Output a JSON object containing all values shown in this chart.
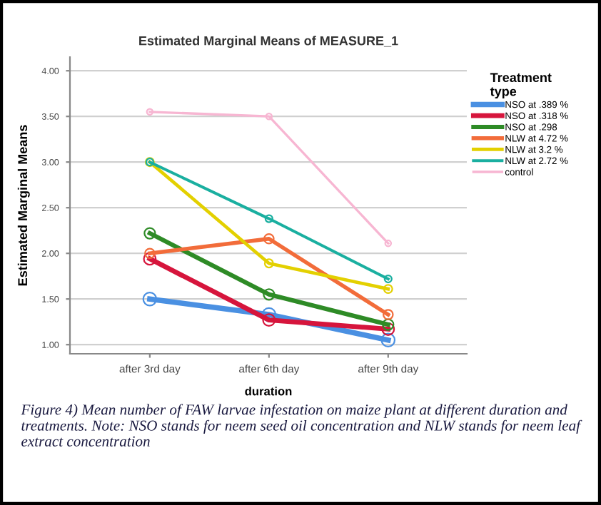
{
  "chart_data": {
    "type": "line",
    "title": "Estimated Marginal Means of MEASURE_1",
    "xlabel": "duration",
    "ylabel": "Estimated Marginal Means",
    "legend_title": "Treatment\ntype",
    "categories": [
      "after 3rd day",
      "after 6th day",
      "after 9th day"
    ],
    "series": [
      {
        "name": "NSO at .389 %",
        "color": "#4a90e2",
        "values": [
          1.5,
          1.33,
          1.05
        ]
      },
      {
        "name": "NSO at .318 %",
        "color": "#d6153c",
        "values": [
          1.94,
          1.27,
          1.17
        ]
      },
      {
        "name": "NSO at .298",
        "color": "#2e8b26",
        "values": [
          2.22,
          1.55,
          1.22
        ]
      },
      {
        "name": "NLW at 4.72 %",
        "color": "#f26c3a",
        "values": [
          2.0,
          2.16,
          1.33
        ]
      },
      {
        "name": "NLW at 3.2 %",
        "color": "#e3d000",
        "values": [
          3.0,
          1.89,
          1.61
        ]
      },
      {
        "name": "NLW at 2.72 %",
        "color": "#1aafa0",
        "values": [
          3.0,
          2.38,
          1.72
        ]
      },
      {
        "name": "control",
        "color": "#f7b6d2",
        "values": [
          3.55,
          3.5,
          2.11
        ]
      }
    ],
    "ylim": [
      0.9,
      4.15
    ],
    "yticks": [
      {
        "value": 1,
        "label": "1.00"
      },
      {
        "value": 1.5,
        "label": "1.50"
      },
      {
        "value": 2,
        "label": "2.00"
      },
      {
        "value": 2.5,
        "label": "2.50"
      },
      {
        "value": 3,
        "label": "3.00"
      },
      {
        "value": 3.5,
        "label": "3.50"
      },
      {
        "value": 4,
        "label": "4.00"
      }
    ],
    "grid": "y",
    "legend": "top right",
    "marker": "circle",
    "line_style": "solid",
    "annotations": [
      "Figure 4) Mean number of FAW larvae infestation on maize plant at different duration and treatments. Note: NSO stands for neem seed oil concentration and NLW stands for neem leaf extract concentration"
    ]
  }
}
